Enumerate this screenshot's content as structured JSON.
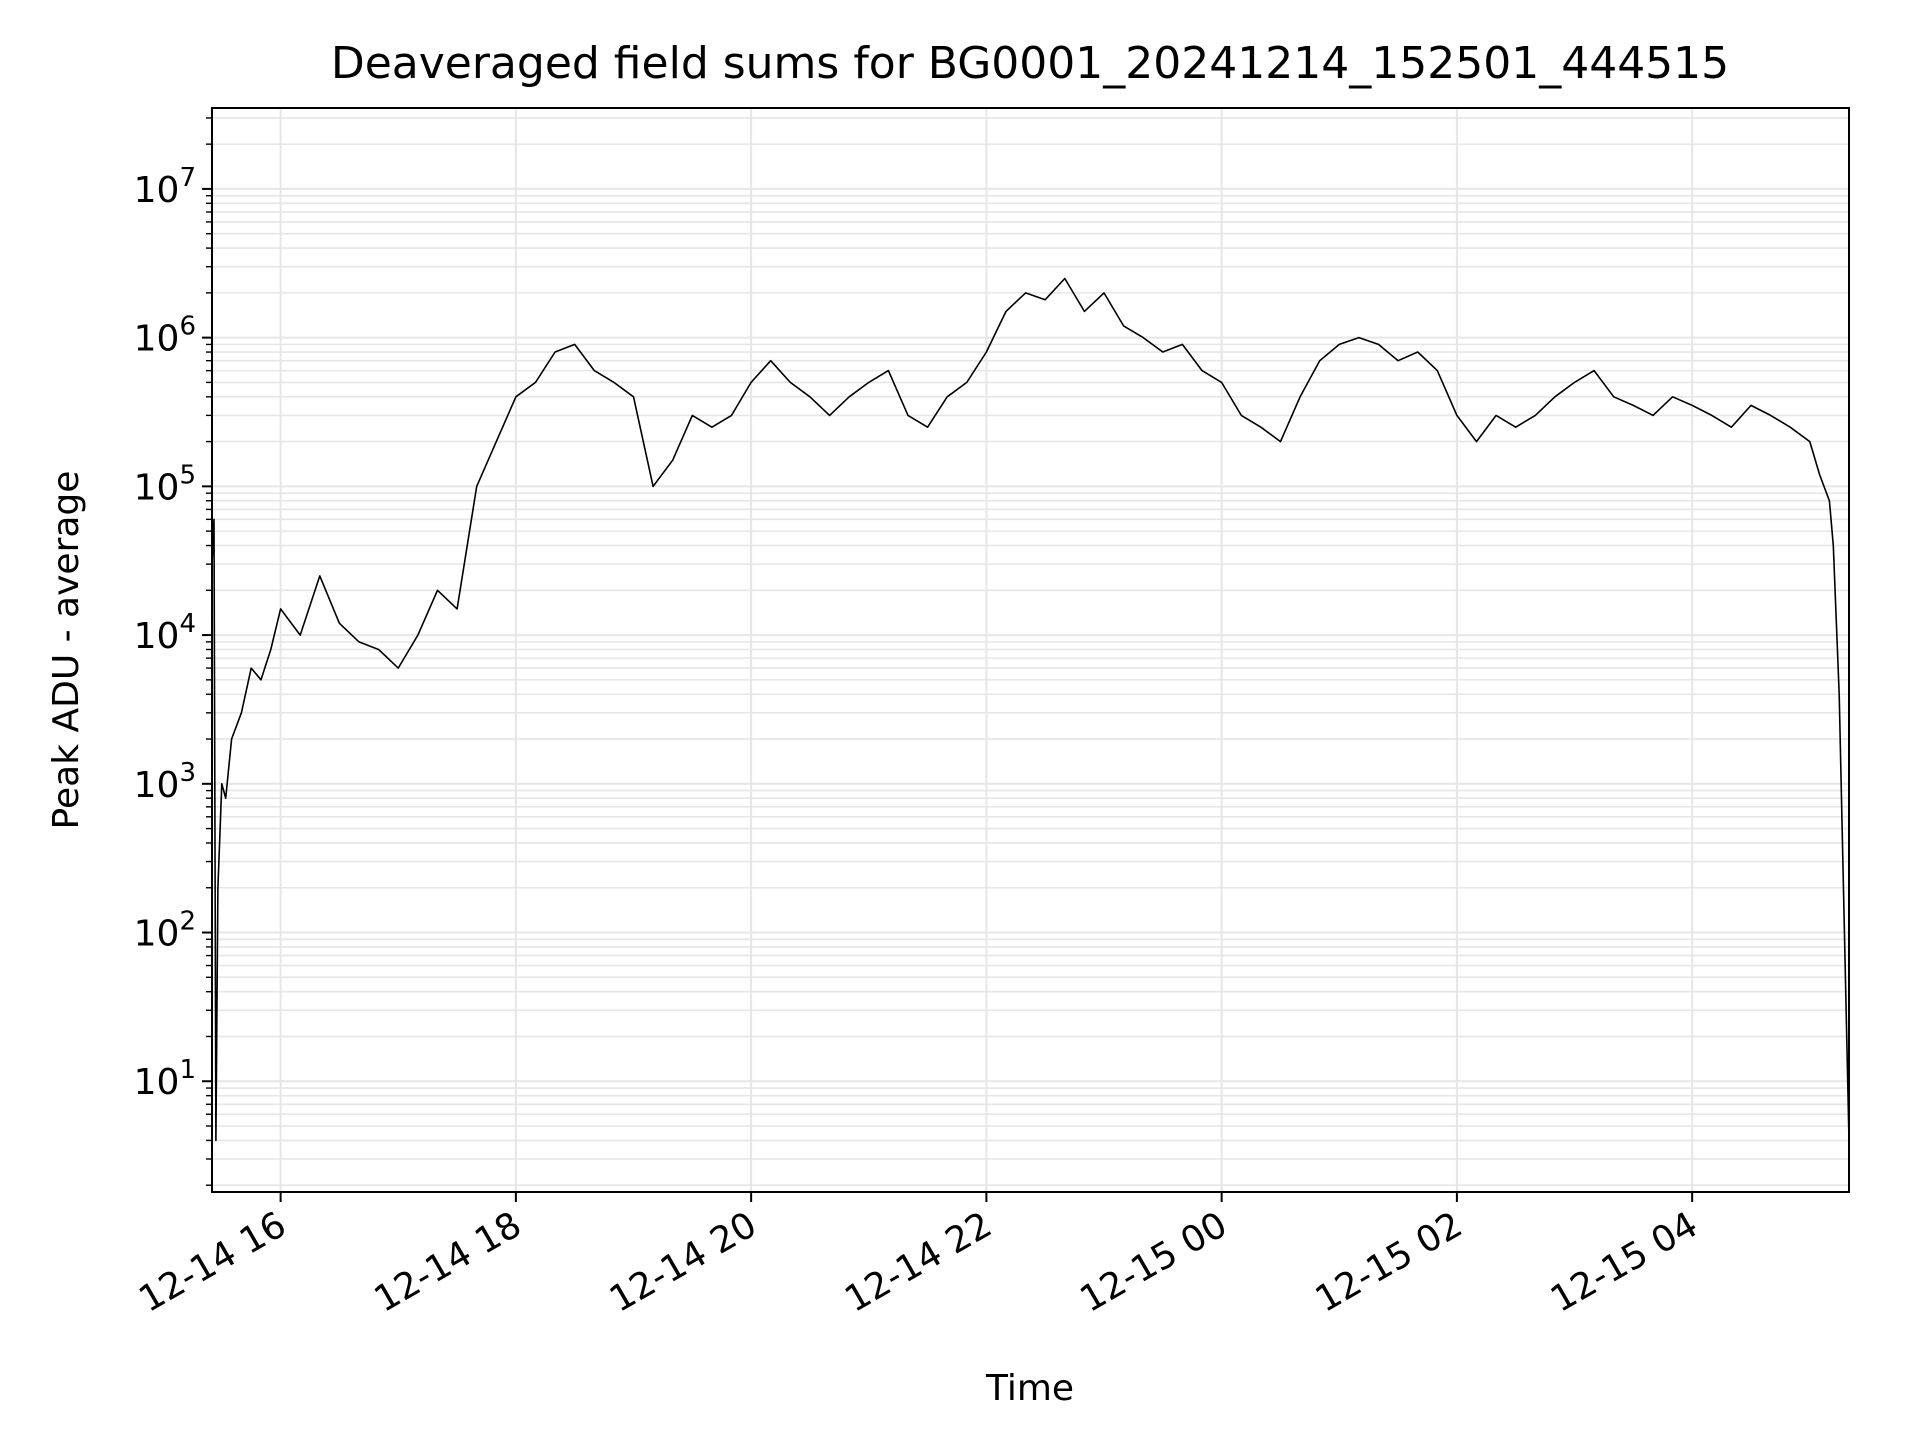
{
  "chart_data": {
    "type": "line",
    "title": "Deaveraged field sums for BG0001_20241214_152501_444515",
    "xlabel": "Time",
    "ylabel": "Peak ADU - average",
    "yscale": "log",
    "ylim": [
      1.8,
      35000000
    ],
    "xlim": [
      "2024-12-14T15:25",
      "2024-12-15T05:20"
    ],
    "grid": true,
    "line_color": "#000000",
    "grid_color": "#e6e6e6",
    "x_ticks": [
      {
        "value": "2024-12-14T16:00",
        "label": "12-14 16"
      },
      {
        "value": "2024-12-14T18:00",
        "label": "12-14 18"
      },
      {
        "value": "2024-12-14T20:00",
        "label": "12-14 20"
      },
      {
        "value": "2024-12-14T22:00",
        "label": "12-14 22"
      },
      {
        "value": "2024-12-15T00:00",
        "label": "12-15 00"
      },
      {
        "value": "2024-12-15T02:00",
        "label": "12-15 02"
      },
      {
        "value": "2024-12-15T04:00",
        "label": "12-15 04"
      }
    ],
    "y_ticks": [
      {
        "value": 10,
        "base": "10",
        "exp": "1"
      },
      {
        "value": 100,
        "base": "10",
        "exp": "2"
      },
      {
        "value": 1000,
        "base": "10",
        "exp": "3"
      },
      {
        "value": 10000,
        "base": "10",
        "exp": "4"
      },
      {
        "value": 100000,
        "base": "10",
        "exp": "5"
      },
      {
        "value": 1000000,
        "base": "10",
        "exp": "6"
      },
      {
        "value": 10000000,
        "base": "10",
        "exp": "7"
      }
    ],
    "series": [
      {
        "x": [
          "2024-12-14T15:25",
          "2024-12-14T15:26",
          "2024-12-14T15:27",
          "2024-12-14T15:28",
          "2024-12-14T15:30",
          "2024-12-14T15:32",
          "2024-12-14T15:35",
          "2024-12-14T15:40",
          "2024-12-14T15:45",
          "2024-12-14T15:50",
          "2024-12-14T15:55",
          "2024-12-14T16:00",
          "2024-12-14T16:10",
          "2024-12-14T16:20",
          "2024-12-14T16:30",
          "2024-12-14T16:40",
          "2024-12-14T16:50",
          "2024-12-14T17:00",
          "2024-12-14T17:10",
          "2024-12-14T17:20",
          "2024-12-14T17:30",
          "2024-12-14T17:40",
          "2024-12-14T17:50",
          "2024-12-14T18:00",
          "2024-12-14T18:10",
          "2024-12-14T18:20",
          "2024-12-14T18:30",
          "2024-12-14T18:40",
          "2024-12-14T18:50",
          "2024-12-14T19:00",
          "2024-12-14T19:10",
          "2024-12-14T19:20",
          "2024-12-14T19:30",
          "2024-12-14T19:40",
          "2024-12-14T19:50",
          "2024-12-14T20:00",
          "2024-12-14T20:10",
          "2024-12-14T20:20",
          "2024-12-14T20:30",
          "2024-12-14T20:40",
          "2024-12-14T20:50",
          "2024-12-14T21:00",
          "2024-12-14T21:10",
          "2024-12-14T21:20",
          "2024-12-14T21:30",
          "2024-12-14T21:40",
          "2024-12-14T21:50",
          "2024-12-14T22:00",
          "2024-12-14T22:10",
          "2024-12-14T22:20",
          "2024-12-14T22:30",
          "2024-12-14T22:40",
          "2024-12-14T22:50",
          "2024-12-14T23:00",
          "2024-12-14T23:10",
          "2024-12-14T23:20",
          "2024-12-14T23:30",
          "2024-12-14T23:40",
          "2024-12-14T23:50",
          "2024-12-15T00:00",
          "2024-12-15T00:10",
          "2024-12-15T00:20",
          "2024-12-15T00:30",
          "2024-12-15T00:40",
          "2024-12-15T00:50",
          "2024-12-15T01:00",
          "2024-12-15T01:10",
          "2024-12-15T01:20",
          "2024-12-15T01:30",
          "2024-12-15T01:40",
          "2024-12-15T01:50",
          "2024-12-15T02:00",
          "2024-12-15T02:10",
          "2024-12-15T02:20",
          "2024-12-15T02:30",
          "2024-12-15T02:40",
          "2024-12-15T02:50",
          "2024-12-15T03:00",
          "2024-12-15T03:10",
          "2024-12-15T03:20",
          "2024-12-15T03:30",
          "2024-12-15T03:40",
          "2024-12-15T03:50",
          "2024-12-15T04:00",
          "2024-12-15T04:10",
          "2024-12-15T04:20",
          "2024-12-15T04:30",
          "2024-12-15T04:40",
          "2024-12-15T04:50",
          "2024-12-15T05:00",
          "2024-12-15T05:05",
          "2024-12-15T05:10",
          "2024-12-15T05:12",
          "2024-12-15T05:15",
          "2024-12-15T05:20"
        ],
        "y": [
          30000,
          60000,
          4,
          200,
          1000,
          800,
          2000,
          3000,
          6000,
          5000,
          8000,
          15000,
          10000,
          25000,
          12000,
          9000,
          8000,
          6000,
          10000,
          20000,
          15000,
          100000,
          200000,
          400000,
          500000,
          800000,
          900000,
          600000,
          500000,
          400000,
          100000,
          150000,
          300000,
          250000,
          300000,
          500000,
          700000,
          500000,
          400000,
          300000,
          400000,
          500000,
          600000,
          300000,
          250000,
          400000,
          500000,
          800000,
          1500000,
          2000000,
          1800000,
          2500000,
          1500000,
          2000000,
          1200000,
          1000000,
          800000,
          900000,
          600000,
          500000,
          300000,
          250000,
          200000,
          400000,
          700000,
          900000,
          1000000,
          900000,
          700000,
          800000,
          600000,
          300000,
          200000,
          300000,
          250000,
          300000,
          400000,
          500000,
          600000,
          400000,
          350000,
          300000,
          400000,
          350000,
          300000,
          250000,
          350000,
          300000,
          250000,
          200000,
          120000,
          80000,
          40000,
          4000,
          4
        ]
      }
    ]
  }
}
